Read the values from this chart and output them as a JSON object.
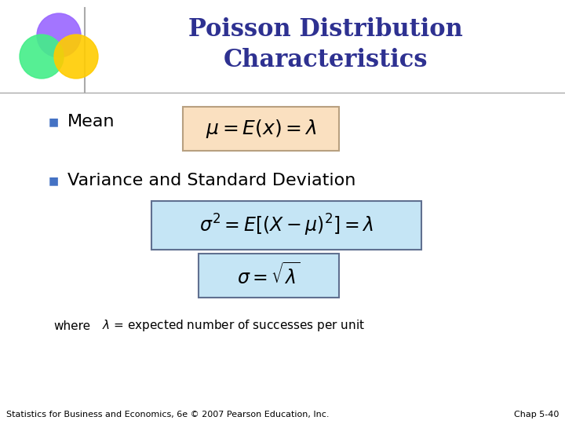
{
  "title_line1": "Poisson Distribution",
  "title_line2": "Characteristics",
  "title_color": "#2E3191",
  "title_fontsize": 22,
  "background_color": "#FFFFFF",
  "bullet_color": "#4472C4",
  "bullet1_text": "Mean",
  "bullet2_text": "Variance and Standard Deviation",
  "bullet_fontsize": 16,
  "formula1_text": "$\\mu = E(x) = \\lambda$",
  "formula1_box_color": "#FAE0C0",
  "formula1_border_color": "#B8A080",
  "formula2_text": "$\\sigma^2 = E[(X-\\mu)^2] = \\lambda$",
  "formula2_box_color": "#C5E5F5",
  "formula2_border_color": "#607090",
  "formula3_text": "$\\sigma = \\sqrt{\\lambda}$",
  "formula3_box_color": "#C5E5F5",
  "formula3_border_color": "#607090",
  "formula1_fontsize": 18,
  "formula2_fontsize": 17,
  "formula3_fontsize": 17,
  "where_fontsize": 11,
  "footer_left": "Statistics for Business and Economics, 6e © 2007 Pearson Education, Inc.",
  "footer_right": "Chap 5-40",
  "footer_fontsize": 8,
  "separator_color": "#AAAAAA",
  "logo": {
    "purple": "#9966FF",
    "green": "#44EE88",
    "orange": "#FF6600",
    "yellow": "#FFCC00"
  }
}
